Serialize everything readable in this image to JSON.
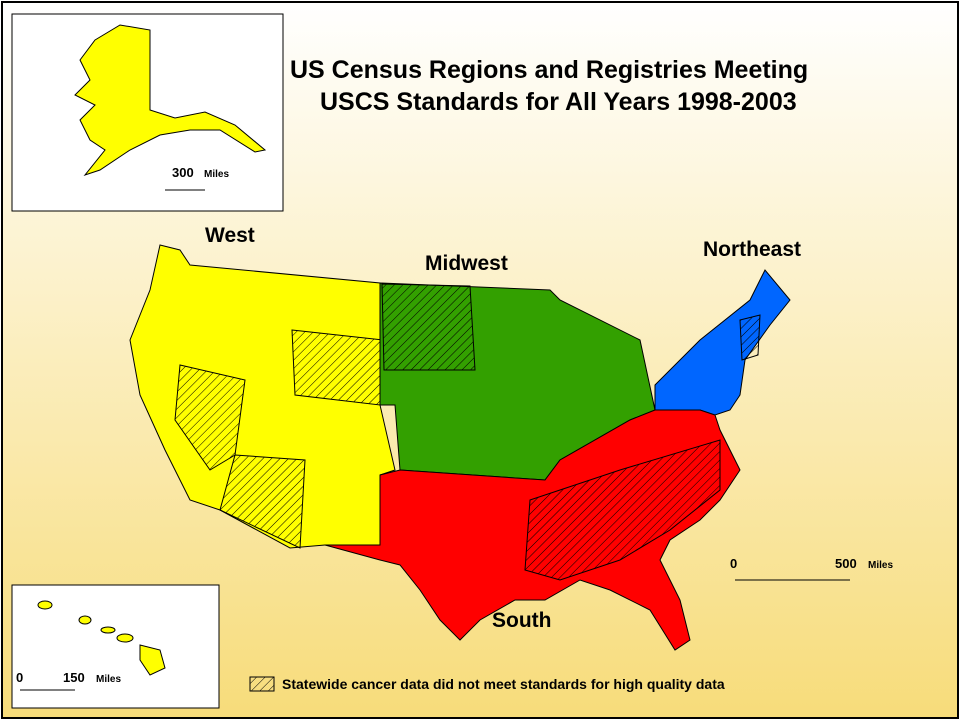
{
  "title": {
    "line1": "US Census Regions and Registries Meeting",
    "line2": "USCS Standards for All Years 1998-2003"
  },
  "regions": {
    "west": "West",
    "midwest": "Midwest",
    "northeast": "Northeast",
    "south": "South"
  },
  "alaska_scale": {
    "distance": 300,
    "unit": "Miles"
  },
  "main_scale": {
    "start": 0,
    "distance": 500,
    "unit": "Miles"
  },
  "hawaii_scale": {
    "start": 0,
    "distance": 150,
    "unit": "Miles"
  },
  "legend": {
    "hatched": "Statewide cancer data did not meet standards for high quality data"
  }
}
